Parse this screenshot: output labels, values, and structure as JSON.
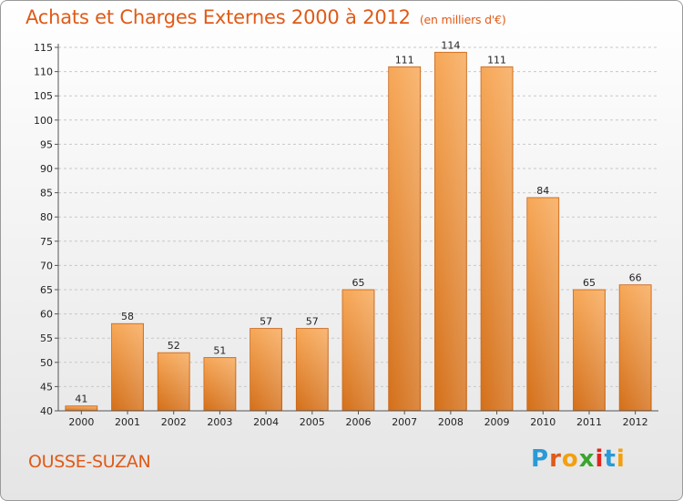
{
  "header": {
    "title": "Achats et Charges Externes 2000 à 2012",
    "subtitle": "(en milliers d'€)"
  },
  "footer": {
    "location": "OUSSE-SUZAN",
    "logo": {
      "letters": [
        "P",
        "r",
        "o",
        "x",
        "i",
        "t",
        "i"
      ],
      "colors": [
        "#2a9ad6",
        "#e05a17",
        "#f2a010",
        "#3aa52e",
        "#e0261c",
        "#2a9ad6",
        "#f2a010"
      ]
    }
  },
  "chart_data": {
    "type": "bar",
    "title": "Achats et Charges Externes 2000 à 2012",
    "subtitle": "(en milliers d'€)",
    "categories": [
      "2000",
      "2001",
      "2002",
      "2003",
      "2004",
      "2005",
      "2006",
      "2007",
      "2008",
      "2009",
      "2010",
      "2011",
      "2012"
    ],
    "values": [
      41,
      58,
      52,
      51,
      57,
      57,
      65,
      111,
      114,
      111,
      84,
      65,
      66
    ],
    "ylim": [
      40,
      115
    ],
    "yticks": [
      40,
      45,
      50,
      55,
      60,
      65,
      70,
      75,
      80,
      85,
      90,
      95,
      100,
      105,
      110,
      115
    ],
    "grid": true,
    "bar_color": "#f08c2a"
  }
}
